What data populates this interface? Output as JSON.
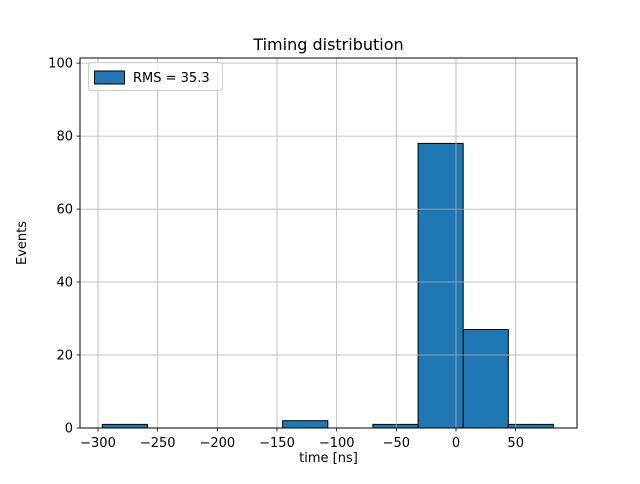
{
  "chart_data": {
    "type": "bar",
    "subtype": "histogram",
    "title": "Timing distribution",
    "xlabel": "time [ns]",
    "ylabel": "Events",
    "bin_edges": [
      -296.4,
      -258.6,
      -220.8,
      -183.0,
      -145.2,
      -107.4,
      -69.6,
      -31.8,
      6.0,
      43.8,
      81.6
    ],
    "counts": [
      1,
      0,
      0,
      0,
      2,
      0,
      1,
      78,
      27,
      1
    ],
    "xlim": [
      -315.1,
      101.4
    ],
    "ylim": [
      0,
      101.4
    ],
    "x_ticks": [
      {
        "v": -300,
        "label": "−300"
      },
      {
        "v": -250,
        "label": "−250"
      },
      {
        "v": -200,
        "label": "−200"
      },
      {
        "v": -150,
        "label": "−150"
      },
      {
        "v": -100,
        "label": "−100"
      },
      {
        "v": -50,
        "label": "−50"
      },
      {
        "v": 0,
        "label": "0"
      },
      {
        "v": 50,
        "label": "50"
      }
    ],
    "y_ticks": [
      {
        "v": 0,
        "label": "0"
      },
      {
        "v": 20,
        "label": "20"
      },
      {
        "v": 40,
        "label": "40"
      },
      {
        "v": 60,
        "label": "60"
      },
      {
        "v": 80,
        "label": "80"
      },
      {
        "v": 100,
        "label": "100"
      }
    ],
    "grid": true,
    "legend": {
      "position": "upper left",
      "entries": [
        {
          "label": "RMS = 35.3",
          "fill": "#1f77b4",
          "edge": "#000000"
        }
      ]
    },
    "colors": {
      "bar_fill": "#1f77b4",
      "bar_edge": "#000000",
      "grid": "#b0b0b0",
      "axes_edge": "#000000",
      "background": "#ffffff",
      "legend_edge": "#cccccc",
      "legend_face": "#ffffff"
    }
  }
}
